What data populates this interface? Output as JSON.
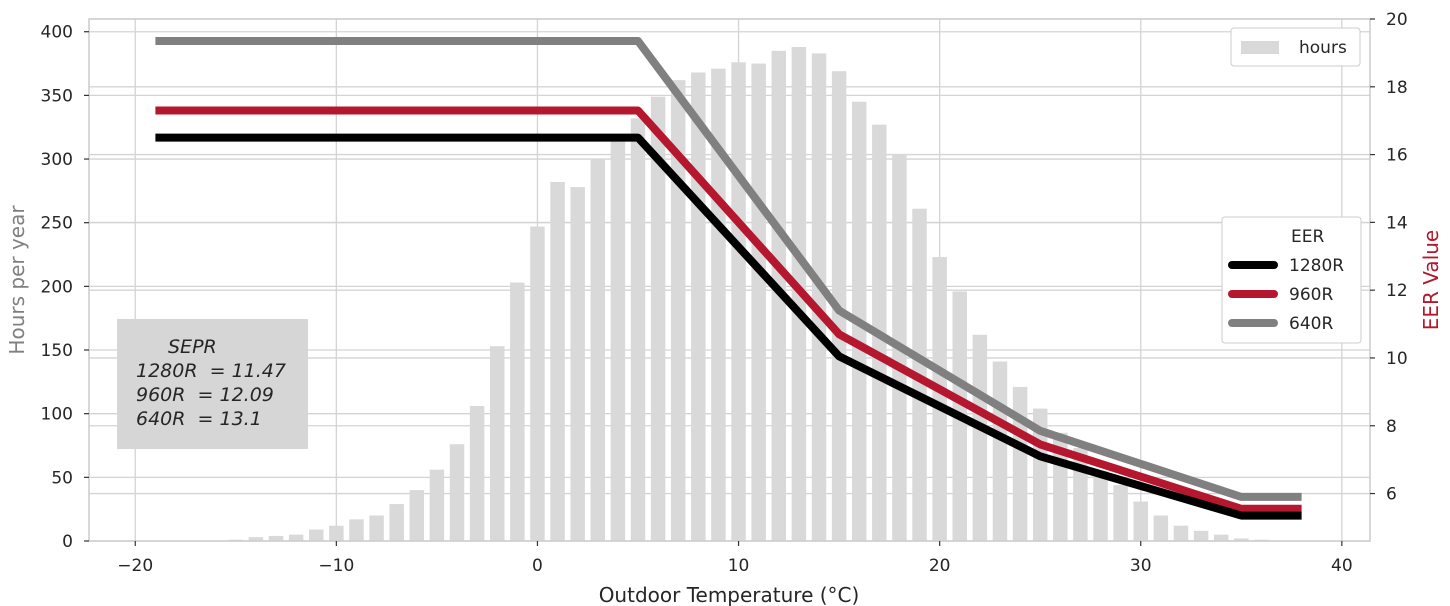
{
  "chart_data": {
    "type": "bar+line",
    "xlabel": "Outdoor Temperature (°C)",
    "ylabel_left": "Hours per year",
    "ylabel_right": "EER Value",
    "xlim": [
      -22.3,
      41.4
    ],
    "ylim_left": [
      0,
      410
    ],
    "ylim_right": [
      4.6,
      20.0
    ],
    "x_ticks": [
      -20,
      -10,
      0,
      10,
      20,
      30,
      40
    ],
    "x_tick_labels": [
      "−20",
      "−10",
      "0",
      "10",
      "20",
      "30",
      "40"
    ],
    "y_left_ticks": [
      0,
      50,
      100,
      150,
      200,
      250,
      300,
      350,
      400
    ],
    "y_right_ticks": [
      6,
      8,
      10,
      12,
      14,
      16,
      18,
      20
    ],
    "grid": true,
    "hours": {
      "name": "hours",
      "x": [
        -19,
        -18,
        -17,
        -16,
        -15,
        -14,
        -13,
        -12,
        -11,
        -10,
        -9,
        -8,
        -7,
        -6,
        -5,
        -4,
        -3,
        -2,
        -1,
        0,
        1,
        2,
        3,
        4,
        5,
        6,
        7,
        8,
        9,
        10,
        11,
        12,
        13,
        14,
        15,
        16,
        17,
        18,
        19,
        20,
        21,
        22,
        23,
        24,
        25,
        26,
        27,
        28,
        29,
        30,
        31,
        32,
        33,
        34,
        35,
        36,
        37,
        38
      ],
      "values": [
        0,
        0,
        0,
        0,
        1,
        3,
        4,
        5,
        9,
        12,
        17,
        20,
        29,
        40,
        56,
        76,
        106,
        153,
        203,
        247,
        282,
        278,
        300,
        318,
        332,
        349,
        362,
        368,
        371,
        376,
        375,
        385,
        388,
        383,
        369,
        345,
        327,
        304,
        261,
        223,
        196,
        162,
        141,
        121,
        104,
        85,
        73,
        55,
        44,
        31,
        20,
        12,
        8,
        5,
        2,
        1,
        0,
        0
      ],
      "color": "#d9d9d9"
    },
    "series": [
      {
        "name": "1280R",
        "color": "#000000",
        "x": [
          -19,
          5,
          15,
          25,
          35,
          38
        ],
        "y": [
          16.5,
          16.5,
          10.05,
          7.1,
          5.35,
          5.35
        ]
      },
      {
        "name": "960R",
        "color": "#b5182e",
        "x": [
          -19,
          5,
          15,
          25,
          35,
          38
        ],
        "y": [
          17.3,
          17.3,
          10.7,
          7.45,
          5.55,
          5.55
        ]
      },
      {
        "name": "640R",
        "color": "#808080",
        "x": [
          -19,
          5,
          15,
          25,
          35,
          38
        ],
        "y": [
          19.35,
          19.35,
          11.4,
          7.85,
          5.9,
          5.9
        ]
      }
    ],
    "legend_hours": {
      "label": "hours",
      "placement": "top-right"
    },
    "legend_eer": {
      "title": "EER",
      "placement": "center-right"
    },
    "annotation": {
      "title": "SEPR",
      "lines": [
        "1280R  = 11.47",
        "960R  = 12.09",
        "640R  = 13.1"
      ],
      "placement": "left"
    },
    "colors": {
      "ylabel_left": "#808080",
      "ylabel_right": "#b5182e",
      "grid": "#d4d4d4",
      "annotation_box": "#d6d6d6"
    }
  }
}
